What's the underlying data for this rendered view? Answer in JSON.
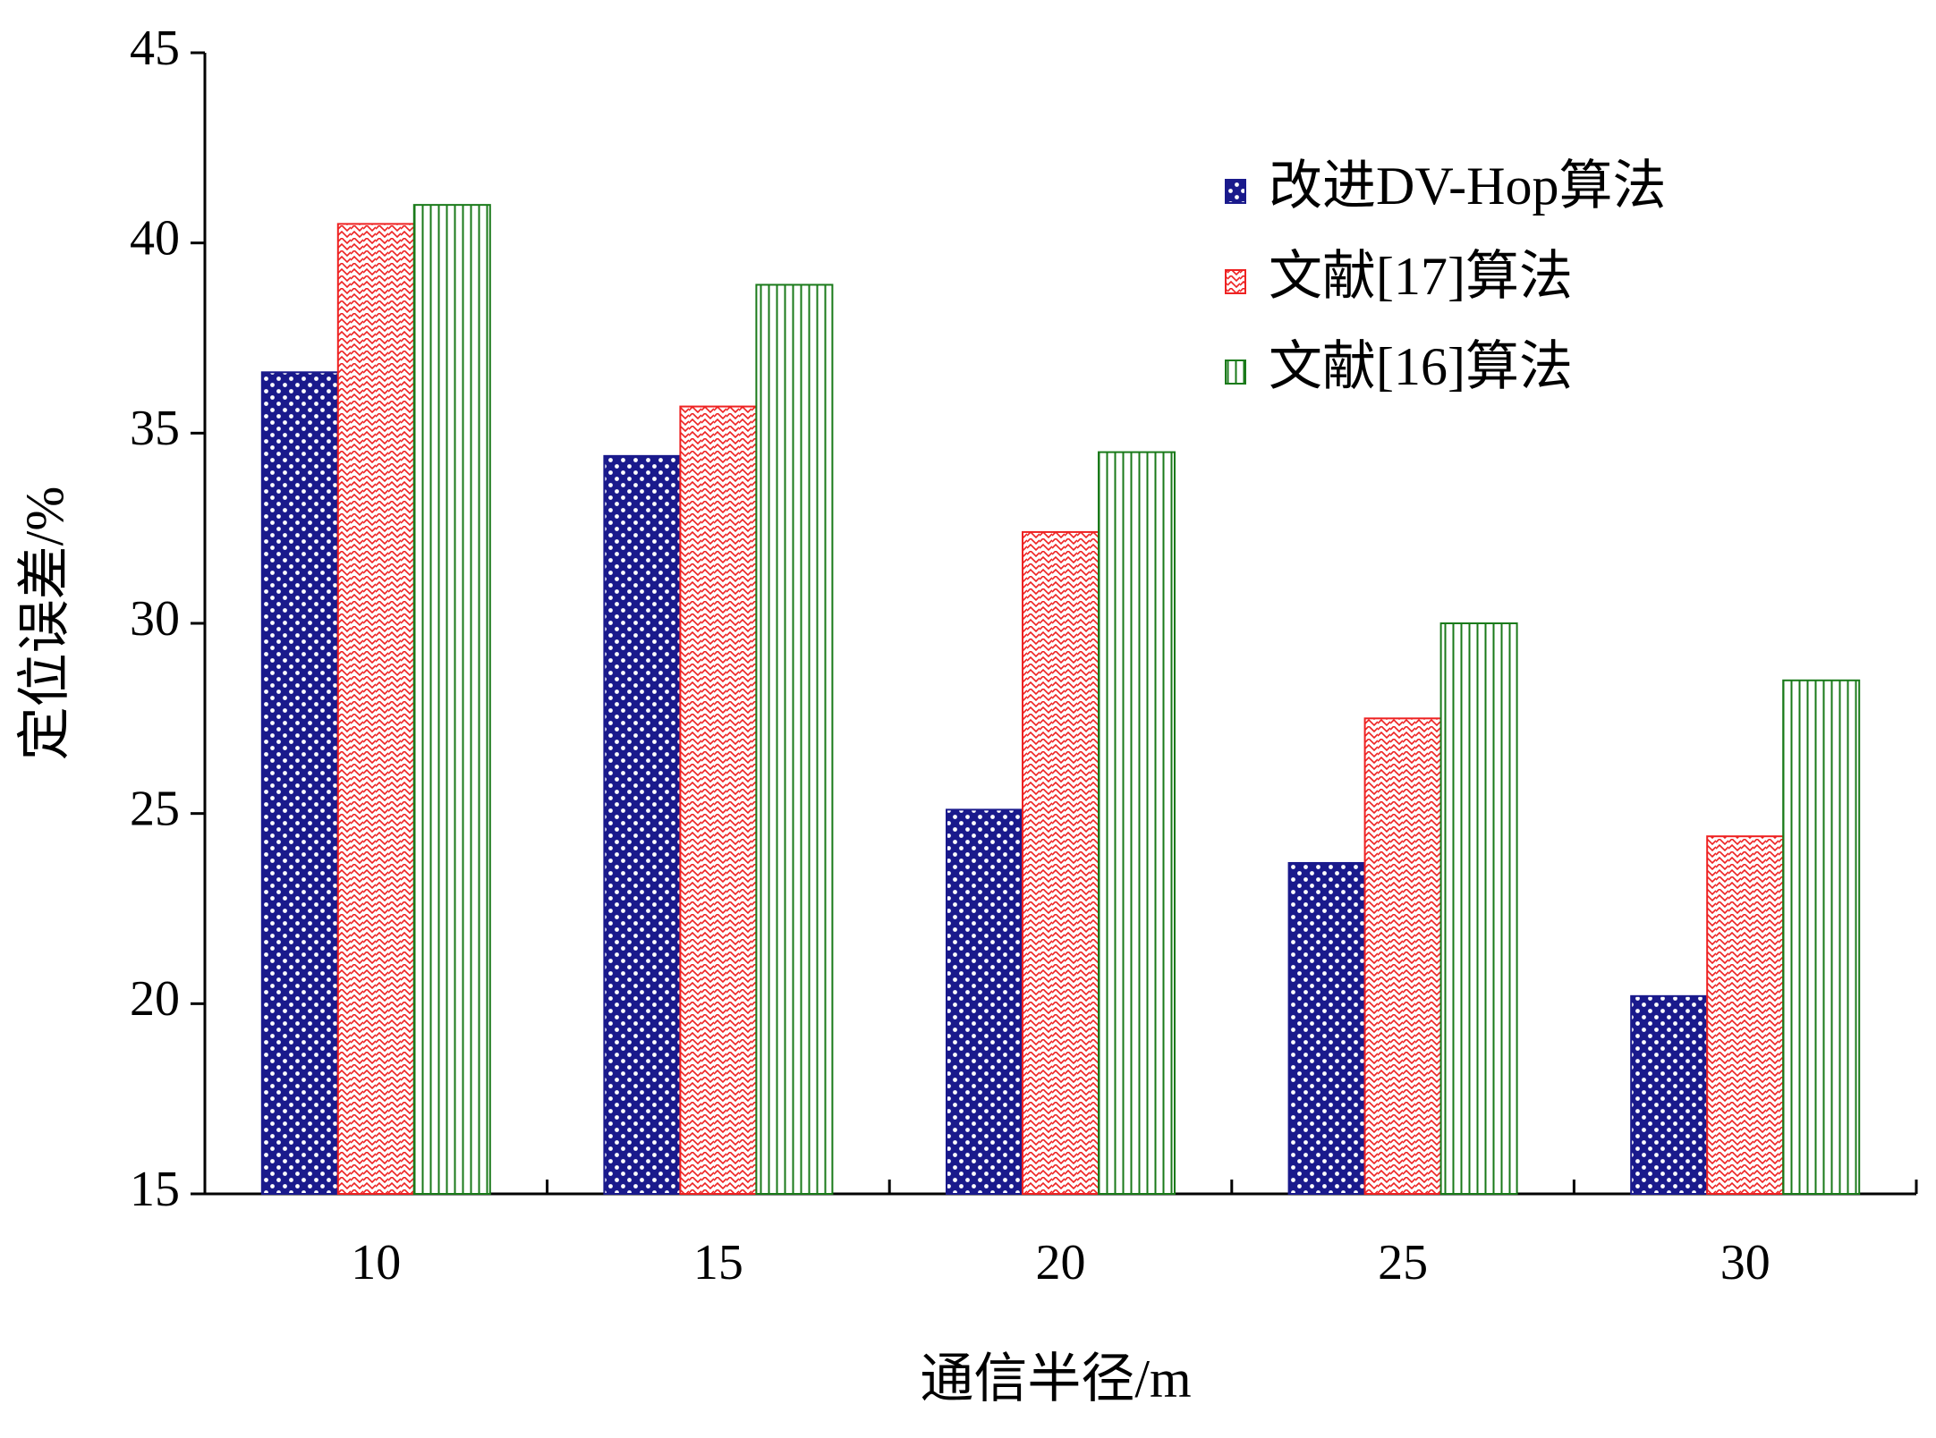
{
  "chart_data": {
    "type": "bar",
    "x_label": "通信半径/m",
    "y_label": "定位误差/%",
    "categories": [
      "10",
      "15",
      "20",
      "25",
      "30"
    ],
    "series": [
      {
        "name": "改进DV-Hop算法",
        "color": "#1a1a8c",
        "values": [
          36.6,
          34.4,
          25.1,
          23.7,
          20.2
        ]
      },
      {
        "name": "文献[17]算法",
        "color": "#ee2222",
        "values": [
          40.5,
          35.7,
          32.4,
          27.5,
          24.4
        ]
      },
      {
        "name": "文献[16]算法",
        "color": "#1a7a1a",
        "values": [
          41.0,
          38.9,
          34.5,
          30.0,
          28.5
        ]
      }
    ],
    "ylim": [
      15,
      45
    ],
    "yticks": [
      15,
      20,
      25,
      30,
      35,
      40,
      45
    ],
    "grid": false,
    "legend": "upper-right"
  }
}
